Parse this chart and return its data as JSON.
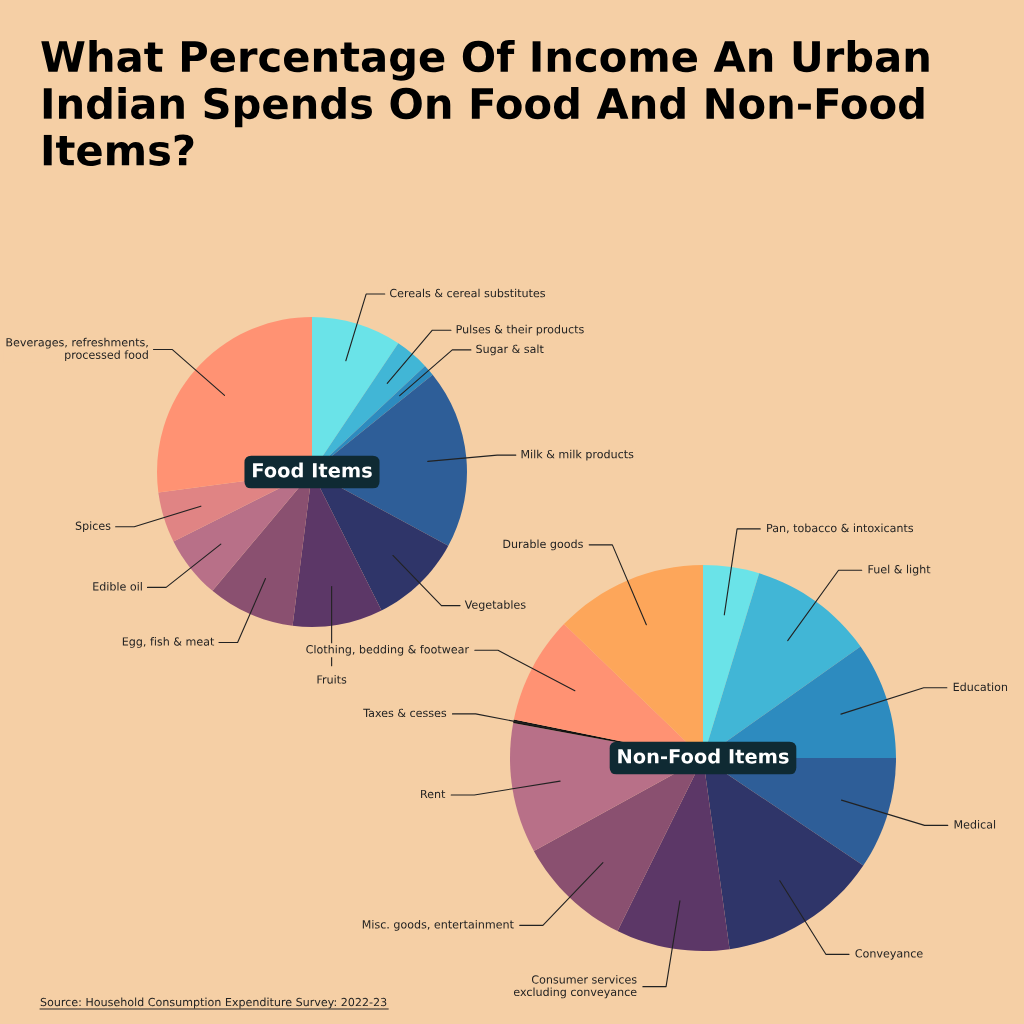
{
  "chart_data": [
    {
      "type": "pie",
      "title": "Food Items",
      "categories": [
        "Cereals & cereal substitutes",
        "Pulses & their products",
        "Sugar & salt",
        "Milk & milk products",
        "Vegetables",
        "Fruits",
        "Egg, fish & meat",
        "Edible oil",
        "Spices",
        "Beverages, refreshments,\nprocessed food"
      ],
      "values": [
        9.4,
        3.6,
        1.2,
        18.7,
        9.7,
        9.4,
        9.1,
        6.5,
        5.3,
        27.1
      ],
      "colors": [
        "#6ae3e8",
        "#41b6d6",
        "#2d8bbf",
        "#2e5e98",
        "#2f3569",
        "#5c3767",
        "#8a5070",
        "#b87088",
        "#e08484",
        "#ff9273"
      ],
      "annotations": [
        "What Percentage Of Income An Urban Indian Spends On Food And Non-Food Items?"
      ],
      "legend": false
    },
    {
      "type": "pie",
      "title": "Non-Food Items",
      "categories": [
        "Pan, tobacco & intoxicants",
        "Fuel & light",
        "Education",
        "Medical",
        "Conveyance",
        "Consumer services\nexcluding conveyance",
        "Misc. goods, entertainment",
        "Rent",
        "Taxes & cesses",
        "Clothing, bedding & footwear",
        "Durable goods"
      ],
      "values": [
        4.7,
        10.5,
        9.8,
        9.4,
        13.4,
        9.5,
        9.7,
        10.9,
        0.3,
        9.0,
        12.8
      ],
      "colors": [
        "#6ae3e8",
        "#41b6d6",
        "#2d8bbf",
        "#2e5e98",
        "#2f3569",
        "#5c3767",
        "#8a5070",
        "#b87088",
        "#111111",
        "#ff9273",
        "#fda65a"
      ],
      "annotations": [
        "Source: Household Consumption Expenditure Survey: 2022-23"
      ],
      "legend": false
    }
  ]
}
